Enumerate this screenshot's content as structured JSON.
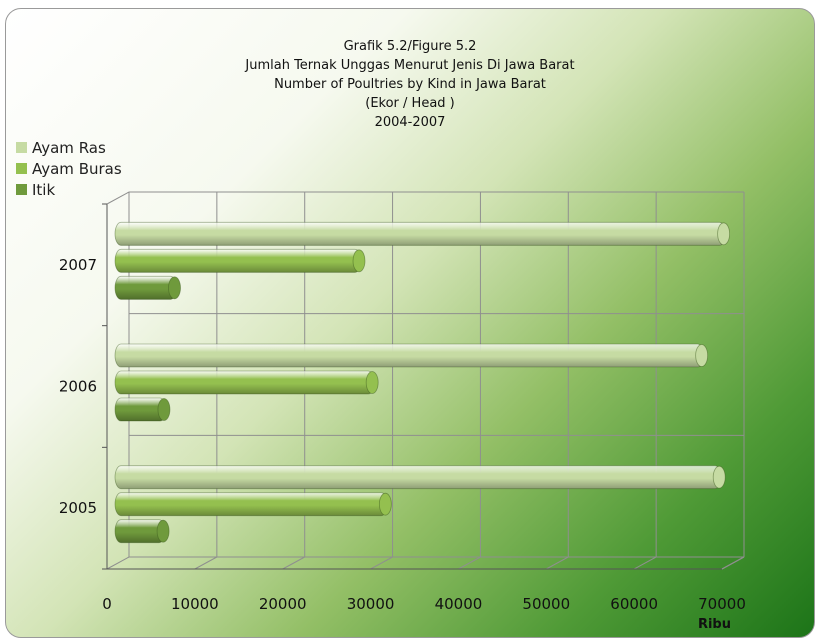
{
  "chart_data": {
    "type": "bar",
    "orientation": "horizontal",
    "title_lines": [
      "Grafik 5.2/Figure 5.2",
      "Jumlah Ternak Unggas Menurut Jenis Di Jawa Barat",
      "Number of Poultries by Kind in Jawa Barat",
      "(Ekor / Head )",
      "2004-2007"
    ],
    "categories": [
      "2005",
      "2006",
      "2007"
    ],
    "series": [
      {
        "name": "Ayam Ras",
        "color": "#c6dba3",
        "values": [
          69000,
          67000,
          69500
        ]
      },
      {
        "name": "Ayam Buras",
        "color": "#94c04f",
        "values": [
          31000,
          29500,
          28000
        ]
      },
      {
        "name": "Itik",
        "color": "#6f9a3c",
        "values": [
          5700,
          5800,
          7000
        ]
      }
    ],
    "xlim": [
      0,
      70000
    ],
    "x_ticks": [
      "0",
      "10000",
      "20000",
      "30000",
      "40000",
      "50000",
      "60000",
      "70000"
    ],
    "x_unit": "Ribu",
    "grid": true,
    "legend_position": "left"
  }
}
